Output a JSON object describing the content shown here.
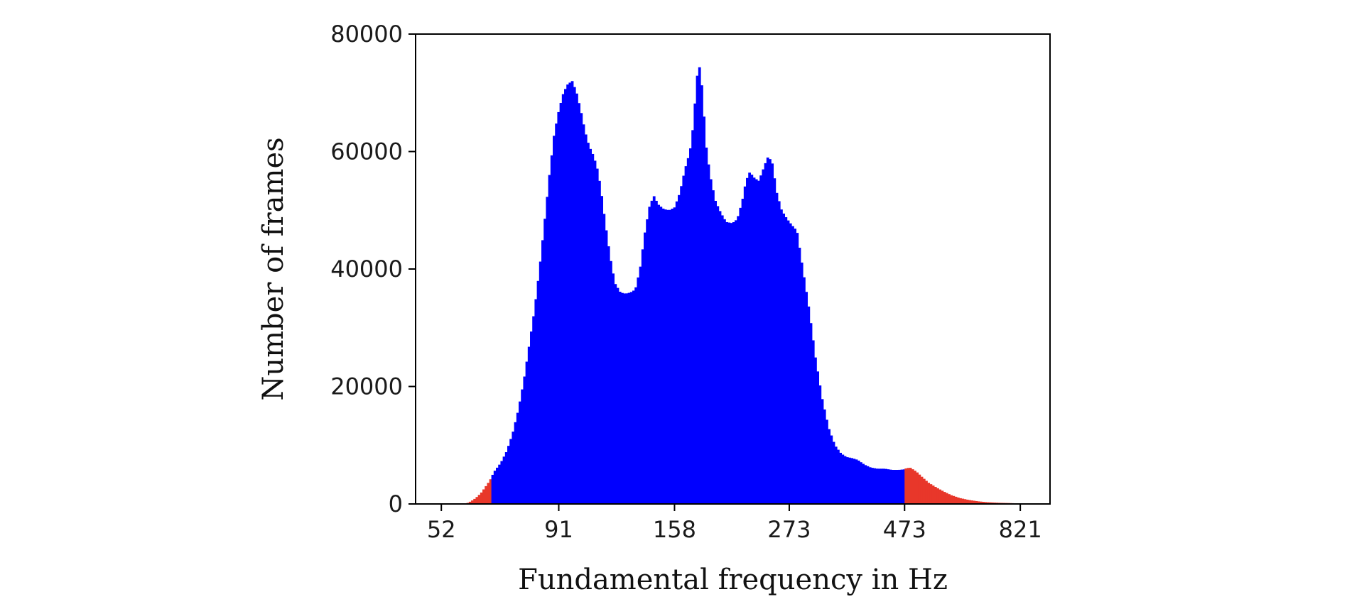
{
  "chart_data": {
    "type": "bar",
    "title": "",
    "xlabel": "Fundamental frequency in Hz",
    "ylabel": "Number of frames",
    "x_scale": "log",
    "xlim": [
      46,
      946
    ],
    "ylim": [
      0,
      80000
    ],
    "x_ticks": [
      {
        "value": 52,
        "label": "52"
      },
      {
        "value": 91,
        "label": "91"
      },
      {
        "value": 158,
        "label": "158"
      },
      {
        "value": 273,
        "label": "273"
      },
      {
        "value": 473,
        "label": "473"
      },
      {
        "value": 821,
        "label": "821"
      }
    ],
    "y_ticks": [
      {
        "value": 0,
        "label": "0"
      },
      {
        "value": 20000,
        "label": "20000"
      },
      {
        "value": 40000,
        "label": "40000"
      },
      {
        "value": 60000,
        "label": "60000"
      },
      {
        "value": 80000,
        "label": "80000"
      }
    ],
    "grid": false,
    "legend": "none",
    "colors": {
      "inside_range": "#0000ff",
      "outside_range": "#e8372a",
      "axis": "#000000"
    },
    "series": [
      {
        "color": "#e8372a",
        "points": [
          [
            58,
            0
          ],
          [
            59,
            200
          ],
          [
            60,
            500
          ],
          [
            61,
            900
          ],
          [
            62,
            1400
          ],
          [
            63,
            2000
          ],
          [
            64,
            2800
          ],
          [
            65,
            3600
          ],
          [
            66,
            4500
          ]
        ]
      },
      {
        "color": "#0000ff",
        "points": [
          [
            66,
            4600
          ],
          [
            67,
            5600
          ],
          [
            69,
            7000
          ],
          [
            71,
            9000
          ],
          [
            73,
            12000
          ],
          [
            75,
            16000
          ],
          [
            77,
            21000
          ],
          [
            79,
            27000
          ],
          [
            81,
            33000
          ],
          [
            83,
            40000
          ],
          [
            85,
            48000
          ],
          [
            87,
            56000
          ],
          [
            89,
            63000
          ],
          [
            91,
            67000
          ],
          [
            93,
            70000
          ],
          [
            95,
            71500
          ],
          [
            97,
            72000
          ],
          [
            99,
            70000
          ],
          [
            101,
            67000
          ],
          [
            103,
            63500
          ],
          [
            105,
            61000
          ],
          [
            107,
            59500
          ],
          [
            109,
            57500
          ],
          [
            111,
            54000
          ],
          [
            113,
            49000
          ],
          [
            115,
            44500
          ],
          [
            117,
            40500
          ],
          [
            119,
            37500
          ],
          [
            122,
            36000
          ],
          [
            125,
            35800
          ],
          [
            128,
            36000
          ],
          [
            131,
            36500
          ],
          [
            134,
            40000
          ],
          [
            137,
            46000
          ],
          [
            140,
            50500
          ],
          [
            143,
            52500
          ],
          [
            146,
            51000
          ],
          [
            150,
            50200
          ],
          [
            154,
            50000
          ],
          [
            158,
            50500
          ],
          [
            162,
            53000
          ],
          [
            166,
            57000
          ],
          [
            170,
            60000
          ],
          [
            173,
            65000
          ],
          [
            175,
            71000
          ],
          [
            177,
            75000
          ],
          [
            179,
            73500
          ],
          [
            181,
            68000
          ],
          [
            184,
            60000
          ],
          [
            188,
            55000
          ],
          [
            192,
            51500
          ],
          [
            197,
            49500
          ],
          [
            202,
            48000
          ],
          [
            208,
            47800
          ],
          [
            213,
            48500
          ],
          [
            218,
            51500
          ],
          [
            222,
            55000
          ],
          [
            226,
            56500
          ],
          [
            231,
            55500
          ],
          [
            236,
            55000
          ],
          [
            241,
            57000
          ],
          [
            246,
            59000
          ],
          [
            251,
            58500
          ],
          [
            257,
            53000
          ],
          [
            263,
            50000
          ],
          [
            270,
            48500
          ],
          [
            276,
            47500
          ],
          [
            283,
            46500
          ],
          [
            291,
            40000
          ],
          [
            300,
            33000
          ],
          [
            309,
            25000
          ],
          [
            319,
            18000
          ],
          [
            329,
            13000
          ],
          [
            339,
            10000
          ],
          [
            349,
            8600
          ],
          [
            358,
            8000
          ],
          [
            368,
            7800
          ],
          [
            378,
            7500
          ],
          [
            390,
            6700
          ],
          [
            402,
            6200
          ],
          [
            415,
            6000
          ],
          [
            430,
            6000
          ],
          [
            445,
            5800
          ],
          [
            460,
            5800
          ],
          [
            473,
            5900
          ]
        ]
      },
      {
        "color": "#e8372a",
        "points": [
          [
            473,
            6000
          ],
          [
            485,
            6200
          ],
          [
            500,
            5500
          ],
          [
            515,
            4500
          ],
          [
            530,
            3600
          ],
          [
            550,
            2800
          ],
          [
            570,
            2100
          ],
          [
            590,
            1500
          ],
          [
            615,
            1000
          ],
          [
            640,
            700
          ],
          [
            670,
            450
          ],
          [
            700,
            300
          ],
          [
            740,
            200
          ],
          [
            780,
            150
          ],
          [
            820,
            80
          ],
          [
            860,
            0
          ]
        ]
      }
    ]
  }
}
